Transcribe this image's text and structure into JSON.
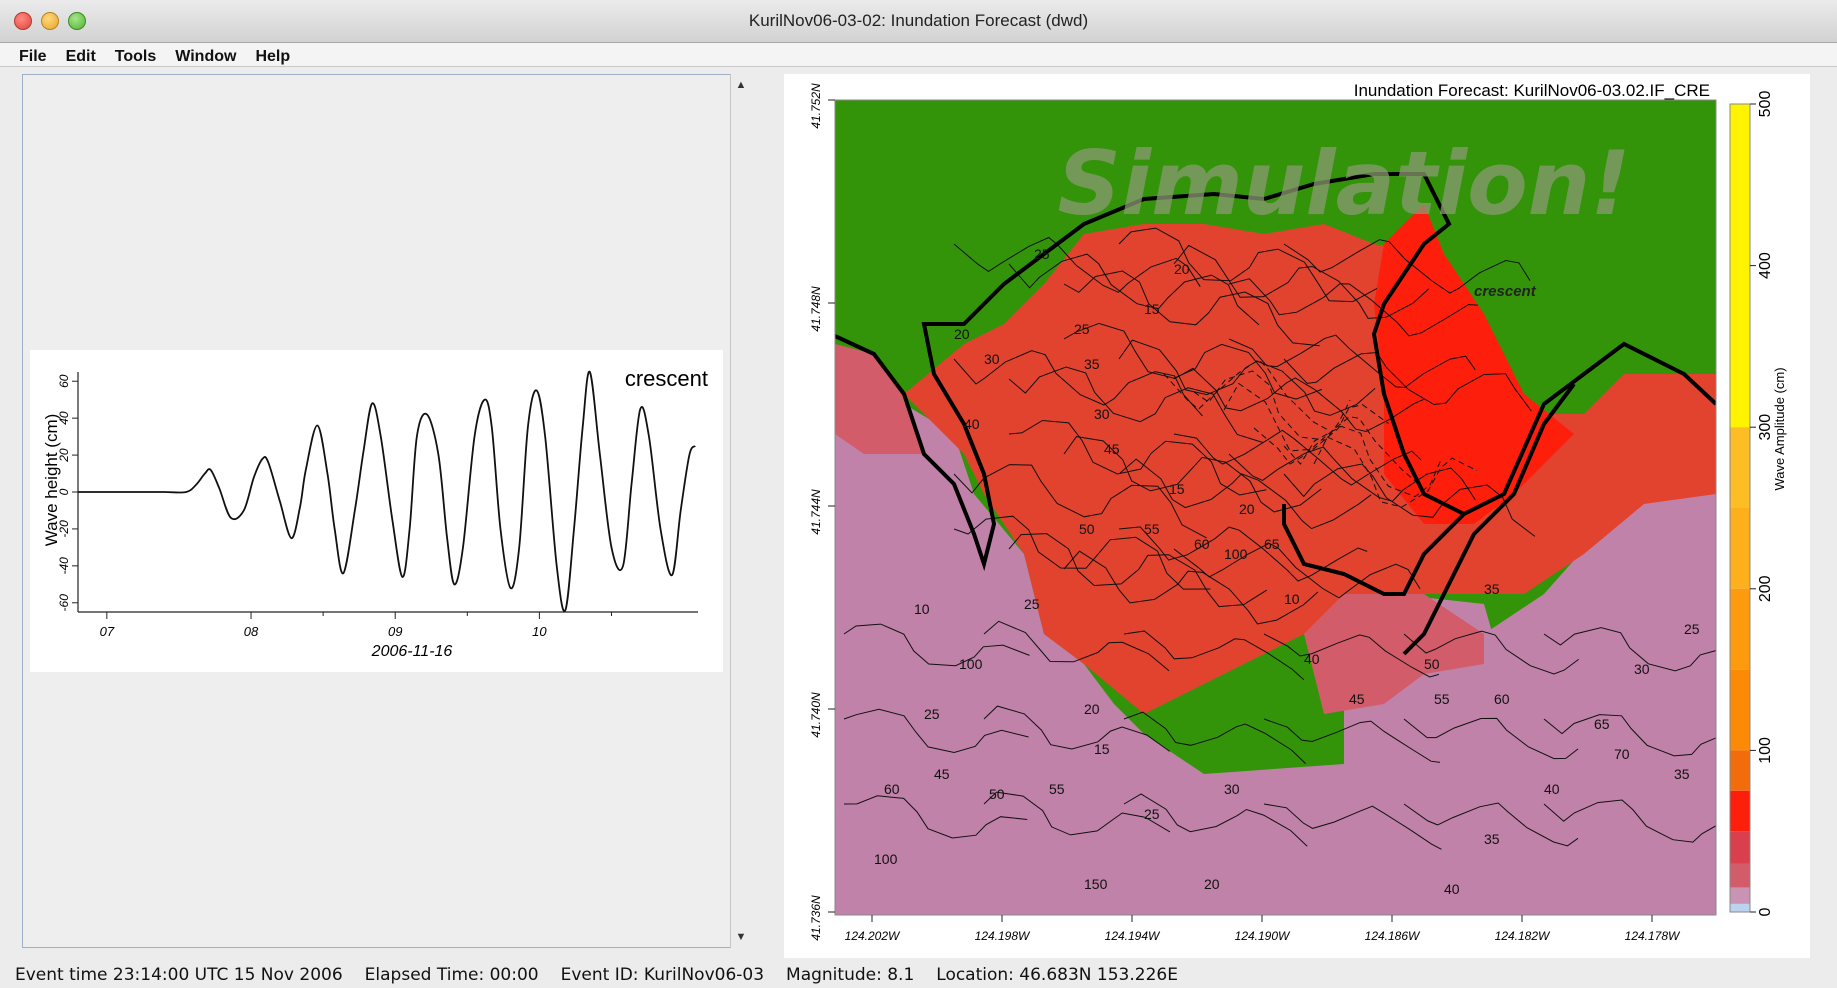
{
  "window": {
    "title": "KurilNov06-03-02: Inundation Forecast (dwd)"
  },
  "menu": {
    "items": [
      "File",
      "Edit",
      "Tools",
      "Window",
      "Help"
    ]
  },
  "timeseries": {
    "station": "crescent",
    "ylabel": "Wave height (cm)",
    "xlabel": "2006-11-16",
    "yticks": [
      "60",
      "40",
      "20",
      "0",
      "-20",
      "-40",
      "-60"
    ],
    "xticks": [
      "07",
      "08",
      "09",
      "10"
    ],
    "chart_data": {
      "type": "line",
      "x_unit": "hours since 2006-11-16 00:00 UTC",
      "ylim": [
        -65,
        65
      ],
      "xlim": [
        6.8,
        11.1
      ],
      "series": [
        {
          "x": [
            6.8,
            7.0,
            7.2,
            7.4,
            7.55,
            7.62,
            7.68,
            7.72,
            7.78,
            7.86,
            7.95,
            8.02,
            8.08,
            8.12,
            8.2,
            8.28,
            8.34,
            8.38,
            8.46,
            8.53,
            8.58,
            8.64,
            8.72,
            8.78,
            8.84,
            8.9,
            8.98,
            9.05,
            9.1,
            9.15,
            9.22,
            9.3,
            9.36,
            9.41,
            9.47,
            9.55,
            9.62,
            9.67,
            9.73,
            9.8,
            9.86,
            9.92,
            9.98,
            10.04,
            10.12,
            10.18,
            10.24,
            10.3,
            10.35,
            10.42,
            10.5,
            10.58,
            10.64,
            10.7,
            10.76,
            10.84,
            10.92,
            10.98,
            11.04,
            11.08
          ],
          "y": [
            0,
            0,
            0,
            0,
            0,
            4,
            10,
            12,
            2,
            -14,
            -10,
            8,
            18,
            16,
            -5,
            -25,
            -8,
            12,
            36,
            10,
            -20,
            -44,
            -10,
            22,
            48,
            30,
            -15,
            -46,
            -20,
            30,
            42,
            20,
            -25,
            -50,
            -30,
            30,
            50,
            35,
            -20,
            -52,
            -30,
            35,
            55,
            30,
            -40,
            -64,
            -20,
            35,
            65,
            20,
            -30,
            -40,
            5,
            45,
            30,
            -20,
            -45,
            -10,
            20,
            25
          ]
        }
      ]
    }
  },
  "map": {
    "title": "Inundation Forecast: KurilNov06-03.02.IF_CRE",
    "watermark": "Simulation!",
    "station_label": "crescent",
    "lat_labels": [
      "41.752N",
      "41.748N",
      "41.744N",
      "41.740N",
      "41.736N"
    ],
    "lon_labels": [
      "124.202W",
      "124.198W",
      "124.194W",
      "124.190W",
      "124.186W",
      "124.182W",
      "124.178W"
    ],
    "colorbar": {
      "label": "Wave Amplitude (cm)",
      "ticks": [
        "500",
        "400",
        "300",
        "200",
        "100",
        "0"
      ]
    },
    "contour_labels": [
      "25",
      "20",
      "25",
      "15",
      "20",
      "30",
      "35",
      "30",
      "40",
      "45",
      "50",
      "55",
      "60",
      "100",
      "65",
      "15",
      "10",
      "20",
      "25",
      "45",
      "50",
      "55",
      "60",
      "100",
      "150",
      "100",
      "25",
      "20",
      "15",
      "25",
      "20",
      "30",
      "40",
      "45",
      "50",
      "55",
      "60",
      "65",
      "70",
      "35",
      "40",
      "35",
      "30",
      "25",
      "10",
      "35",
      "40"
    ],
    "colors": {
      "land": "#33940a",
      "flood_high": "#fd1e0c",
      "flood_mid": "#e2432f",
      "flood_low": "#d35c6b",
      "sea": "#c082a8",
      "sea_deep": "#c79ab8"
    }
  },
  "status": {
    "event_time": "Event time 23:14:00 UTC 15 Nov 2006",
    "elapsed": "Elapsed Time: 00:00",
    "event_id": "Event ID: KurilNov06-03",
    "magnitude": "Magnitude: 8.1",
    "location": "Location: 46.683N 153.226E"
  }
}
